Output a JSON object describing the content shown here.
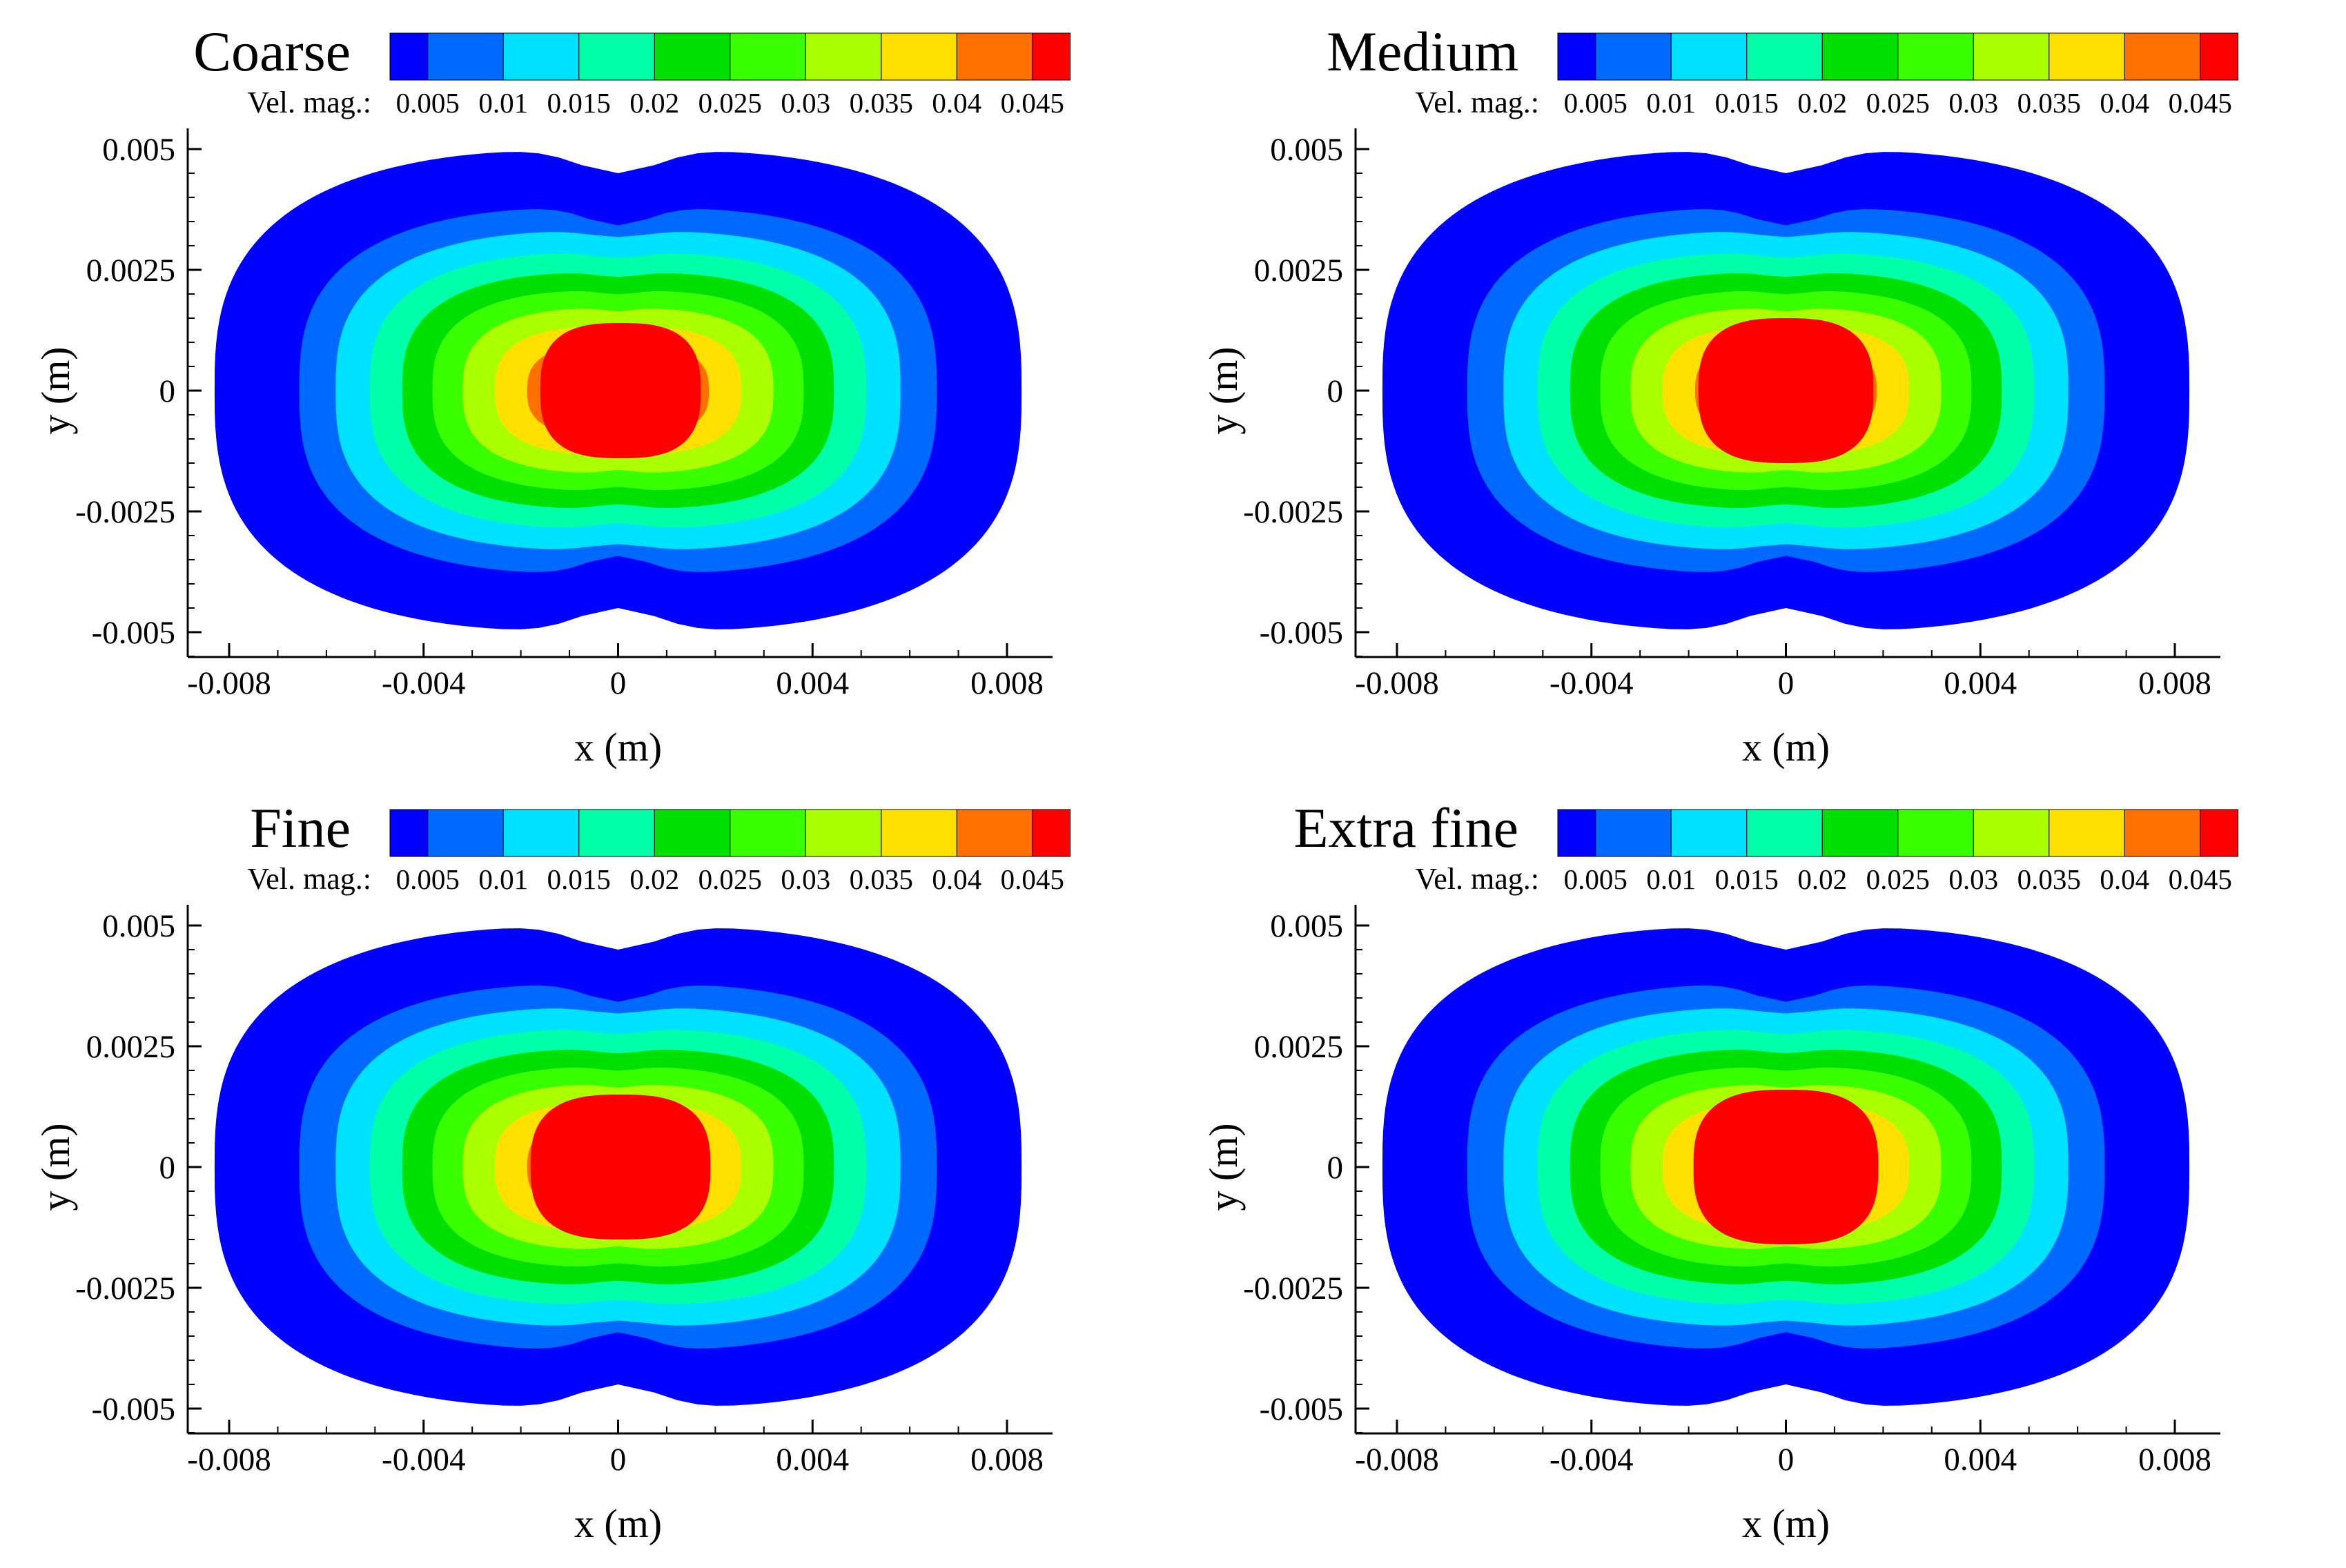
{
  "chart_data": [
    {
      "type": "contour",
      "title": "Coarse",
      "xlabel": "x (m)",
      "ylabel": "y (m)",
      "xlim": [
        -0.009,
        0.009
      ],
      "ylim": [
        -0.0055,
        0.0055
      ],
      "x_ticks": [
        -0.008,
        -0.004,
        0,
        0.004,
        0.008
      ],
      "x_tick_labels": [
        "-0.008",
        "-0.004",
        "0",
        "0.004",
        "0.008"
      ],
      "y_ticks": [
        0.005,
        0.0025,
        0,
        -0.0025,
        -0.005
      ],
      "y_tick_labels": [
        "0.005",
        "0.0025",
        "0",
        "-0.0025",
        "-0.005"
      ],
      "legend_label": "Vel. mag.:",
      "levels": [
        "0.005",
        "0.01",
        "0.015",
        "0.02",
        "0.025",
        "0.03",
        "0.035",
        "0.04",
        "0.045"
      ],
      "level_values": [
        0.005,
        0.01,
        0.015,
        0.02,
        0.025,
        0.03,
        0.035,
        0.04,
        0.045
      ],
      "max_velocity_region": {
        "x_range": [
          -0.0016,
          0.0017
        ],
        "y_range": [
          -0.0014,
          0.0014
        ]
      }
    },
    {
      "type": "contour",
      "title": "Medium",
      "xlabel": "x (m)",
      "ylabel": "y (m)",
      "xlim": [
        -0.009,
        0.009
      ],
      "ylim": [
        -0.0055,
        0.0055
      ],
      "x_ticks": [
        -0.008,
        -0.004,
        0,
        0.004,
        0.008
      ],
      "x_tick_labels": [
        "-0.008",
        "-0.004",
        "0",
        "0.004",
        "0.008"
      ],
      "y_ticks": [
        0.005,
        0.0025,
        0,
        -0.0025,
        -0.005
      ],
      "y_tick_labels": [
        "0.005",
        "0.0025",
        "0",
        "-0.0025",
        "-0.005"
      ],
      "legend_label": "Vel. mag.:",
      "levels": [
        "0.005",
        "0.01",
        "0.015",
        "0.02",
        "0.025",
        "0.03",
        "0.035",
        "0.04",
        "0.045"
      ],
      "level_values": [
        0.005,
        0.01,
        0.015,
        0.02,
        0.025,
        0.03,
        0.035,
        0.04,
        0.045
      ],
      "max_velocity_region": {
        "x_range": [
          -0.0018,
          0.0018
        ],
        "y_range": [
          -0.0015,
          0.0015
        ]
      }
    },
    {
      "type": "contour",
      "title": "Fine",
      "xlabel": "x (m)",
      "ylabel": "y (m)",
      "xlim": [
        -0.009,
        0.009
      ],
      "ylim": [
        -0.0055,
        0.0055
      ],
      "x_ticks": [
        -0.008,
        -0.004,
        0,
        0.004,
        0.008
      ],
      "x_tick_labels": [
        "-0.008",
        "-0.004",
        "0",
        "0.004",
        "0.008"
      ],
      "y_ticks": [
        0.005,
        0.0025,
        0,
        -0.0025,
        -0.005
      ],
      "y_tick_labels": [
        "0.005",
        "0.0025",
        "0",
        "-0.0025",
        "-0.005"
      ],
      "legend_label": "Vel. mag.:",
      "levels": [
        "0.005",
        "0.01",
        "0.015",
        "0.02",
        "0.025",
        "0.03",
        "0.035",
        "0.04",
        "0.045"
      ],
      "level_values": [
        0.005,
        0.01,
        0.015,
        0.02,
        0.025,
        0.03,
        0.035,
        0.04,
        0.045
      ],
      "max_velocity_region": {
        "x_range": [
          -0.0018,
          0.0019
        ],
        "y_range": [
          -0.0015,
          0.0015
        ]
      }
    },
    {
      "type": "contour",
      "title": "Extra fine",
      "xlabel": "x (m)",
      "ylabel": "y (m)",
      "xlim": [
        -0.009,
        0.009
      ],
      "ylim": [
        -0.0055,
        0.0055
      ],
      "x_ticks": [
        -0.008,
        -0.004,
        0,
        0.004,
        0.008
      ],
      "x_tick_labels": [
        "-0.008",
        "-0.004",
        "0",
        "0.004",
        "0.008"
      ],
      "y_ticks": [
        0.005,
        0.0025,
        0,
        -0.0025,
        -0.005
      ],
      "y_tick_labels": [
        "0.005",
        "0.0025",
        "0",
        "-0.0025",
        "-0.005"
      ],
      "legend_label": "Vel. mag.:",
      "levels": [
        "0.005",
        "0.01",
        "0.015",
        "0.02",
        "0.025",
        "0.03",
        "0.035",
        "0.04",
        "0.045"
      ],
      "level_values": [
        0.005,
        0.01,
        0.015,
        0.02,
        0.025,
        0.03,
        0.035,
        0.04,
        0.045
      ],
      "max_velocity_region": {
        "x_range": [
          -0.0019,
          0.0019
        ],
        "y_range": [
          -0.0016,
          0.0016
        ]
      }
    }
  ],
  "colormap": [
    "#0000ff",
    "#006aff",
    "#00e0ff",
    "#00ffa8",
    "#00e000",
    "#3aff00",
    "#aaff00",
    "#ffe000",
    "#ff7000",
    "#ff0000"
  ]
}
